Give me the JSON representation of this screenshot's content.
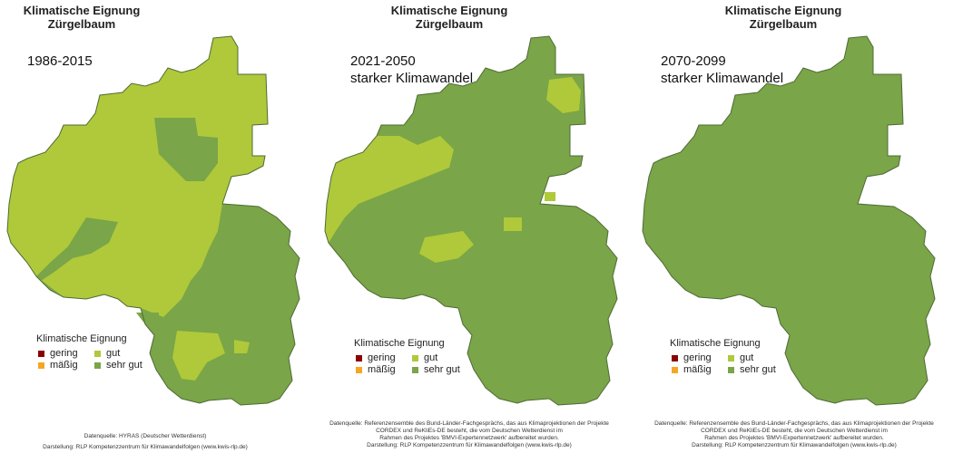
{
  "colors": {
    "gering": "#8b0000",
    "maessig": "#f5a623",
    "gut": "#afc93a",
    "sehr_gut": "#7aa548",
    "border": "#4f6b35"
  },
  "panels": [
    {
      "title_line1": "Klimatische Eignung",
      "title_line2": "Zürgelbaum",
      "period_line1": "1986-2015",
      "period_line2": "",
      "legend_title": "Klimatische Eignung",
      "legend_items": [
        "gering",
        "mäßig",
        "gut",
        "sehr gut"
      ],
      "source_lines": [
        "Datenquelle: HYRAS (Deutscher Wetterdienst)"
      ],
      "credit": "Darstellung: RLP Kompetenzzentrum für Klimawandelfolgen (www.kwis-rlp.de)"
    },
    {
      "title_line1": "Klimatische Eignung",
      "title_line2": "Zürgelbaum",
      "period_line1": "2021-2050",
      "period_line2": "starker Klimawandel",
      "legend_title": "Klimatische Eignung",
      "legend_items": [
        "gering",
        "mäßig",
        "gut",
        "sehr gut"
      ],
      "source_lines": [
        "Datenquelle: Referenzensemble des Bund-Länder-Fachgesprächs, das aus Klimaprojektionen der Projekte",
        "CORDEX und ReKliEs-DE besteht, die vom Deutschen Wetterdienst im",
        "Rahmen des Projektes 'BMVI-Expertennetzwerk' aufbereitet wurden."
      ],
      "credit": "Darstellung: RLP Kompetenzzentrum für Klimawandelfolgen (www.kwis-rlp.de)"
    },
    {
      "title_line1": "Klimatische Eignung",
      "title_line2": "Zürgelbaum",
      "period_line1": "2070-2099",
      "period_line2": "starker Klimawandel",
      "legend_title": "Klimatische Eignung",
      "legend_items": [
        "gering",
        "mäßig",
        "gut",
        "sehr gut"
      ],
      "source_lines": [
        "Datenquelle: Referenzensemble des Bund-Länder-Fachgesprächs, das aus Klimaprojektionen der Projekte",
        "CORDEX und ReKliEs-DE besteht, die vom Deutschen Wetterdienst im",
        "Rahmen des Projektes 'BMVI-Expertennetzwerk' aufbereitet wurden."
      ],
      "credit": "Darstellung: RLP Kompetenzzentrum für Klimawandelfolgen (www.kwis-rlp.de)"
    }
  ]
}
